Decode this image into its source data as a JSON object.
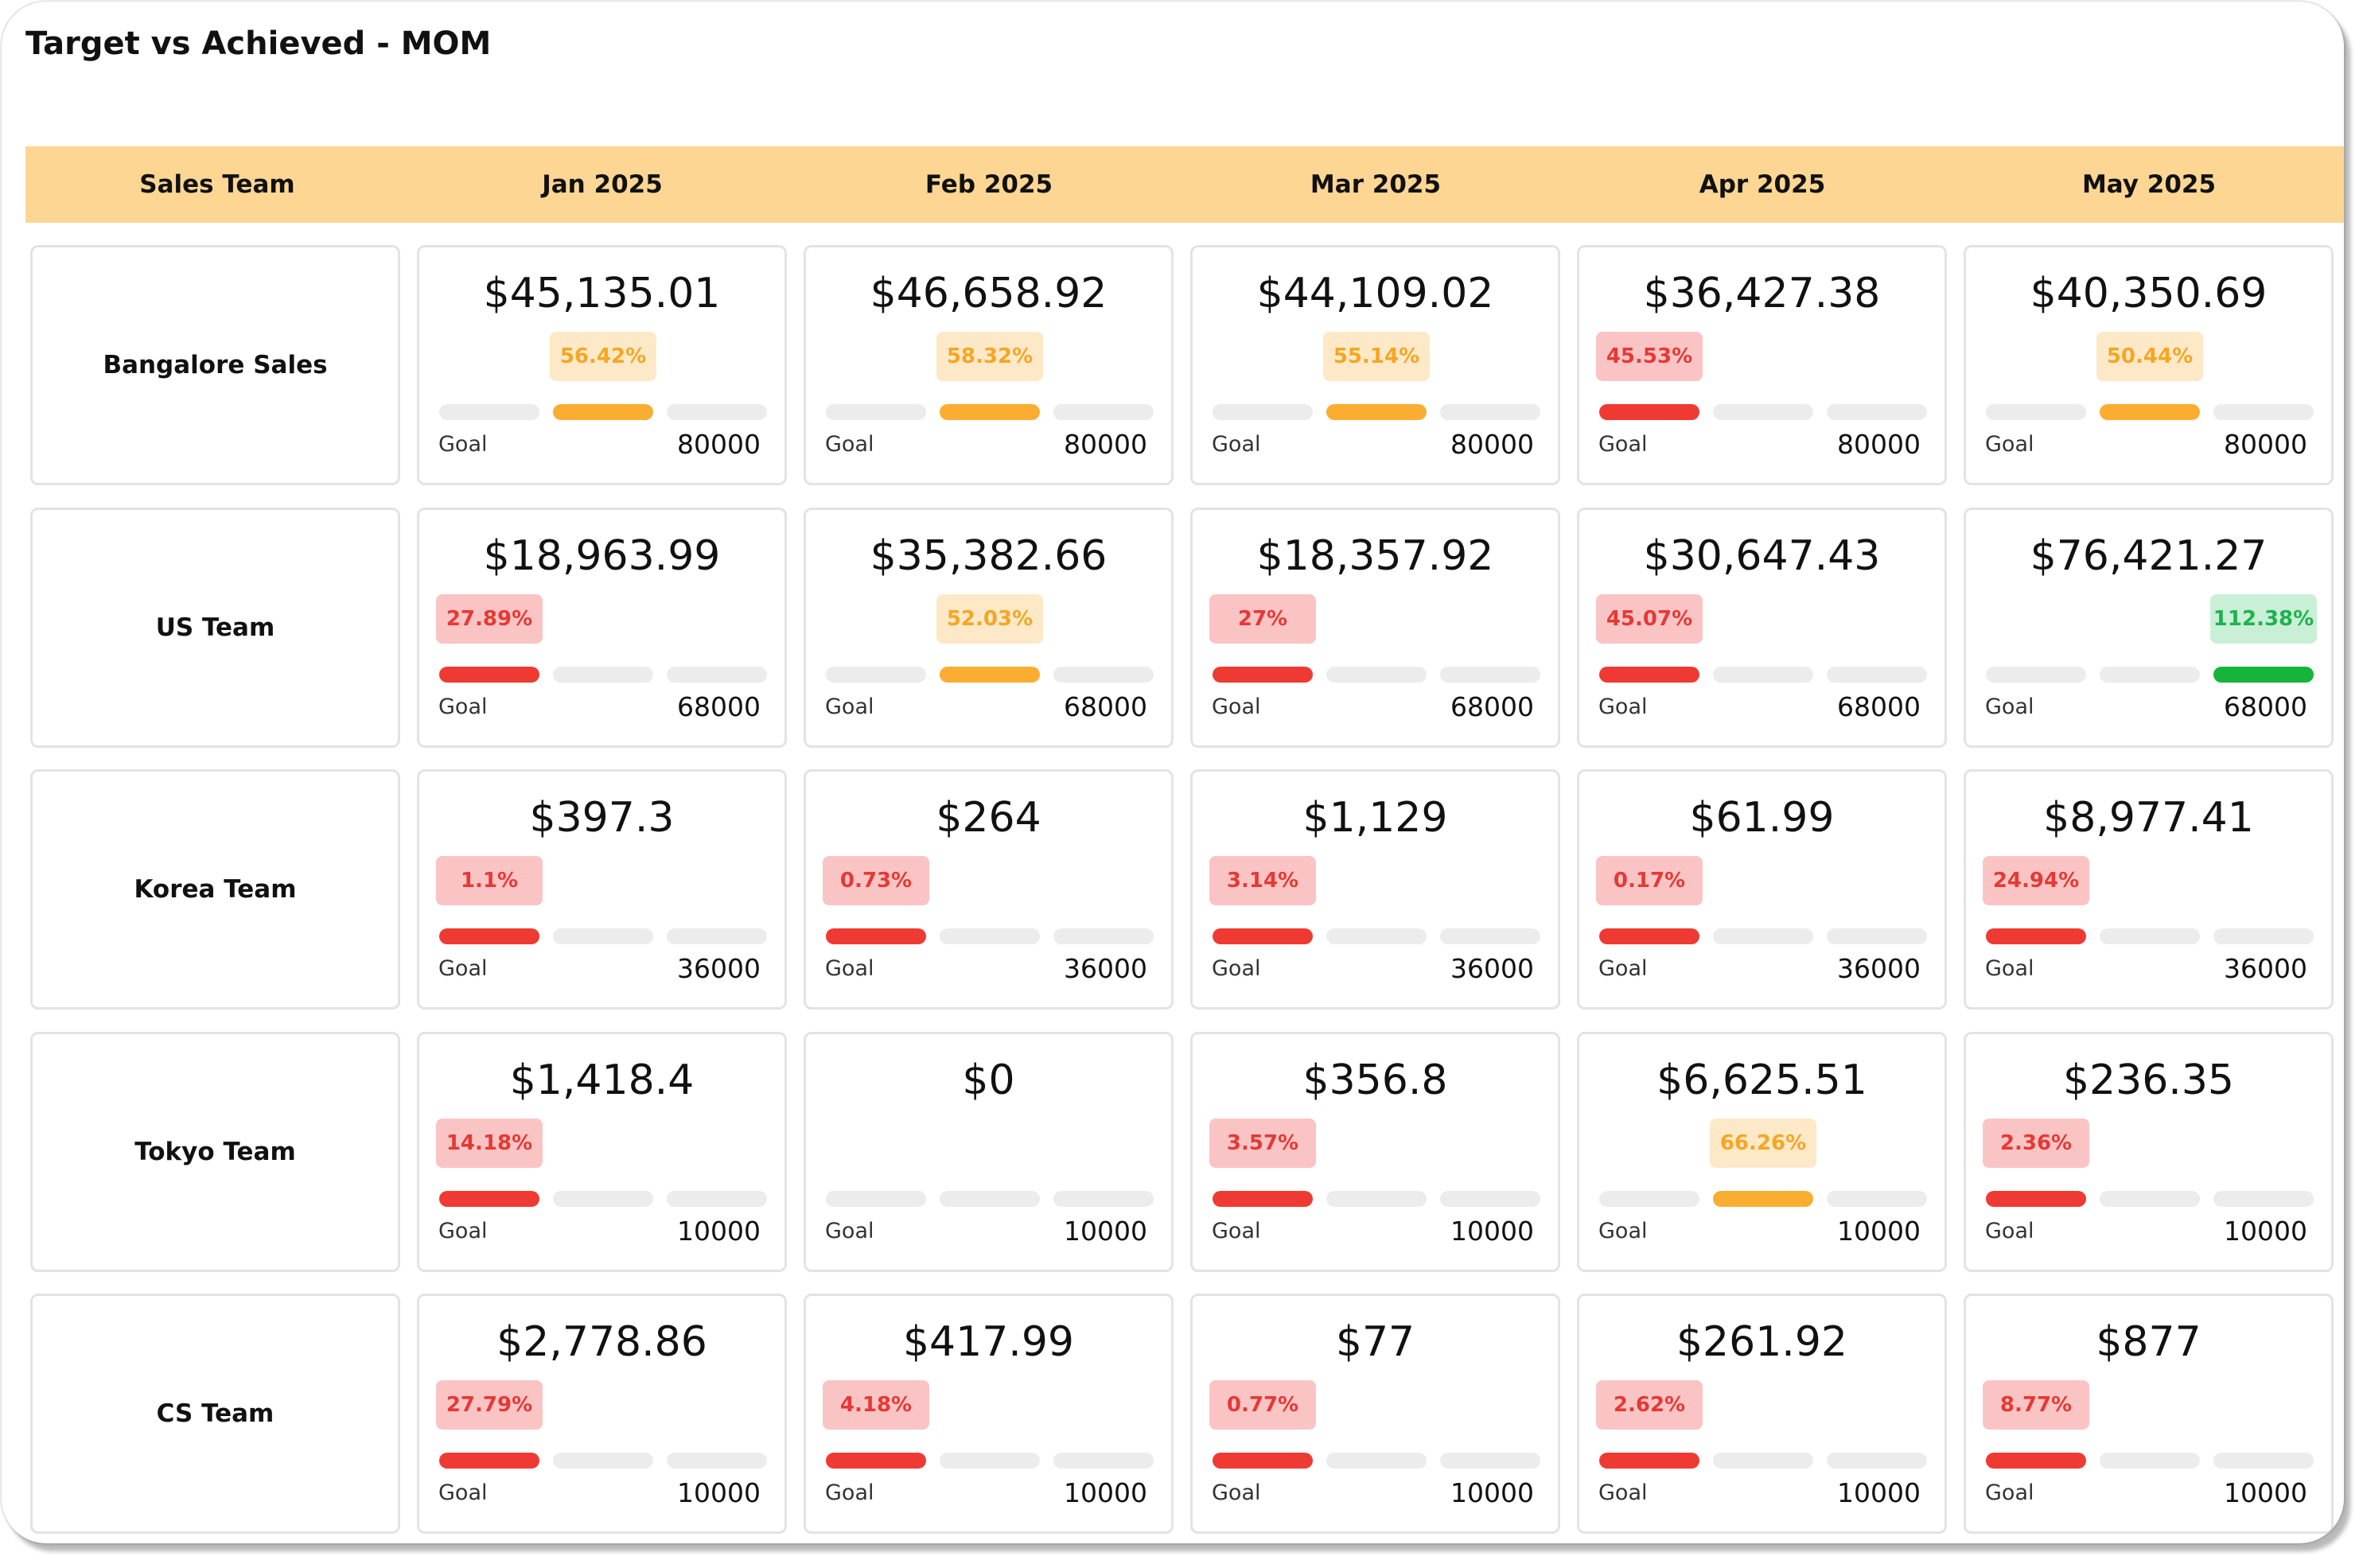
{
  "title": "Target vs Achieved - MOM",
  "columns": [
    "Sales Team",
    "Jan 2025",
    "Feb 2025",
    "Mar 2025",
    "Apr 2025",
    "May 2025"
  ],
  "goal_label": "Goal",
  "colors": {
    "red": "#ef3a33",
    "orange": "#fbad32",
    "green": "#14b53a",
    "header": "#fdd693"
  },
  "rows": [
    {
      "team": "Bangalore Sales",
      "goal": "80000",
      "cells": [
        {
          "amount": "$45,135.01",
          "pct": "56.42%",
          "level": 0.5642,
          "status": "orange"
        },
        {
          "amount": "$46,658.92",
          "pct": "58.32%",
          "level": 0.5832,
          "status": "orange"
        },
        {
          "amount": "$44,109.02",
          "pct": "55.14%",
          "level": 0.5514,
          "status": "orange"
        },
        {
          "amount": "$36,427.38",
          "pct": "45.53%",
          "level": 0.4553,
          "status": "red"
        },
        {
          "amount": "$40,350.69",
          "pct": "50.44%",
          "level": 0.5044,
          "status": "orange"
        }
      ]
    },
    {
      "team": "US Team",
      "goal": "68000",
      "cells": [
        {
          "amount": "$18,963.99",
          "pct": "27.89%",
          "level": 0.2789,
          "status": "red"
        },
        {
          "amount": "$35,382.66",
          "pct": "52.03%",
          "level": 0.5203,
          "status": "orange"
        },
        {
          "amount": "$18,357.92",
          "pct": "27%",
          "level": 0.27,
          "status": "red"
        },
        {
          "amount": "$30,647.43",
          "pct": "45.07%",
          "level": 0.4507,
          "status": "red"
        },
        {
          "amount": "$76,421.27",
          "pct": "112.38%",
          "level": 1.1238,
          "status": "green"
        }
      ]
    },
    {
      "team": "Korea Team",
      "goal": "36000",
      "cells": [
        {
          "amount": "$397.3",
          "pct": "1.1%",
          "level": 0.011,
          "status": "red"
        },
        {
          "amount": "$264",
          "pct": "0.73%",
          "level": 0.0073,
          "status": "red"
        },
        {
          "amount": "$1,129",
          "pct": "3.14%",
          "level": 0.0314,
          "status": "red"
        },
        {
          "amount": "$61.99",
          "pct": "0.17%",
          "level": 0.0017,
          "status": "red"
        },
        {
          "amount": "$8,977.41",
          "pct": "24.94%",
          "level": 0.2494,
          "status": "red"
        }
      ]
    },
    {
      "team": "Tokyo Team",
      "goal": "10000",
      "cells": [
        {
          "amount": "$1,418.4",
          "pct": "14.18%",
          "level": 0.1418,
          "status": "red"
        },
        {
          "amount": "$0",
          "pct": "",
          "level": 0,
          "status": "none"
        },
        {
          "amount": "$356.8",
          "pct": "3.57%",
          "level": 0.0357,
          "status": "red"
        },
        {
          "amount": "$6,625.51",
          "pct": "66.26%",
          "level": 0.6626,
          "status": "orange"
        },
        {
          "amount": "$236.35",
          "pct": "2.36%",
          "level": 0.0236,
          "status": "red"
        }
      ]
    },
    {
      "team": "CS Team",
      "goal": "10000",
      "cells": [
        {
          "amount": "$2,778.86",
          "pct": "27.79%",
          "level": 0.2779,
          "status": "red"
        },
        {
          "amount": "$417.99",
          "pct": "4.18%",
          "level": 0.0418,
          "status": "red"
        },
        {
          "amount": "$77",
          "pct": "0.77%",
          "level": 0.0077,
          "status": "red"
        },
        {
          "amount": "$261.92",
          "pct": "2.62%",
          "level": 0.0262,
          "status": "red"
        },
        {
          "amount": "$877",
          "pct": "8.77%",
          "level": 0.0877,
          "status": "red"
        }
      ]
    }
  ]
}
